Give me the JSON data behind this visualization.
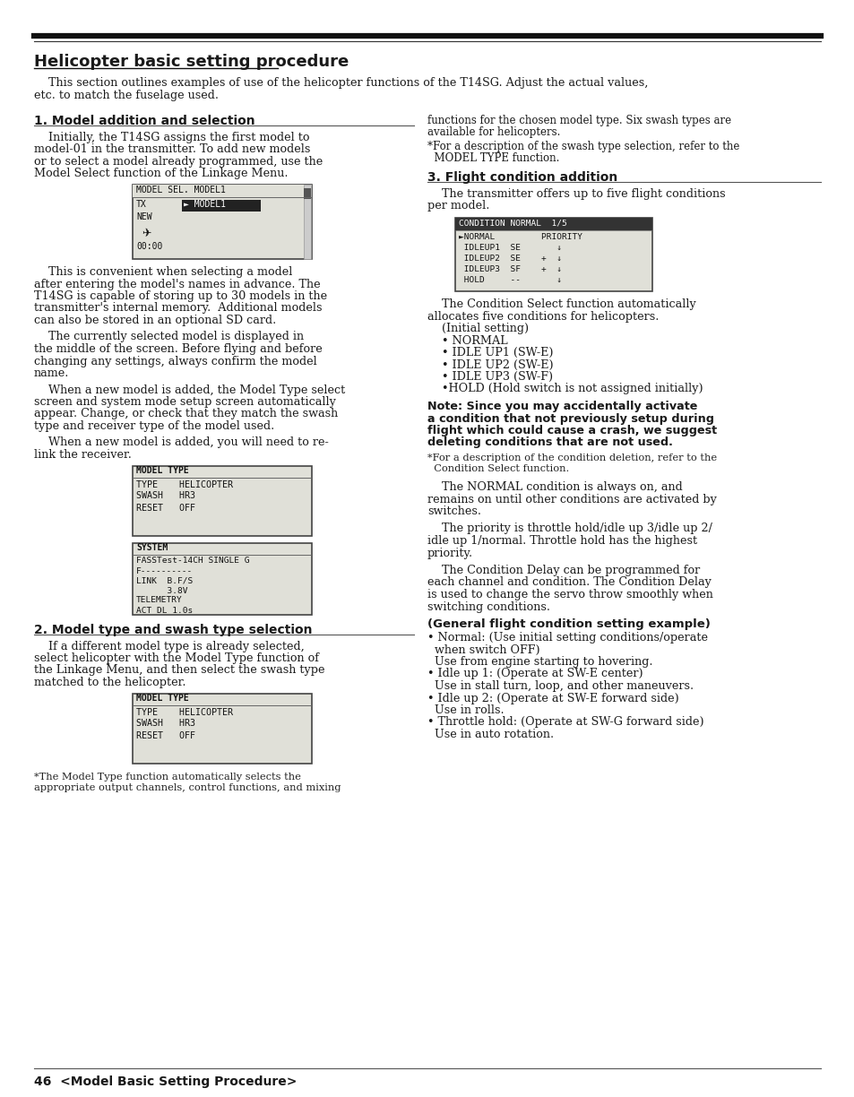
{
  "bg_color": "#ffffff",
  "text_color": "#1a1a1a",
  "title": "Helicopter basic setting procedure",
  "intro_line1": "    This section outlines examples of use of the helicopter functions of the T14SG. Adjust the actual values,",
  "intro_line2": "etc. to match the fuselage used.",
  "s1_head": "1. Model addition and selection",
  "s1_p1_lines": [
    "    Initially, the T14SG assigns the first model to",
    "model-01 in the transmitter. To add new models",
    "or to select a model already programmed, use the",
    "Model Select function of the Linkage Menu."
  ],
  "s1_p2_lines": [
    "    This is convenient when selecting a model",
    "after entering the model's names in advance. The",
    "T14SG is capable of storing up to 30 models in the",
    "transmitter's internal memory.  Additional models",
    "can also be stored in an optional SD card."
  ],
  "s1_p3_lines": [
    "    The currently selected model is displayed in",
    "the middle of the screen. Before flying and before",
    "changing any settings, always confirm the model",
    "name."
  ],
  "s1_p4_lines": [
    "    When a new model is added, the Model Type select",
    "screen and system mode setup screen automatically",
    "appear. Change, or check that they match the swash",
    "type and receiver type of the model used."
  ],
  "s1_p5_lines": [
    "    When a new model is added, you will need to re-",
    "link the receiver."
  ],
  "s2_head": "2. Model type and swash type selection",
  "s2_p1_lines": [
    "    If a different model type is already selected,",
    "select helicopter with the Model Type function of",
    "the Linkage Menu, and then select the swash type",
    "matched to the helicopter."
  ],
  "s2_note_lines": [
    "*The Model Type function automatically selects the",
    "appropriate output channels, control functions, and mixing"
  ],
  "r_top1_lines": [
    "functions for the chosen model type. Six swash types are",
    "available for helicopters."
  ],
  "r_top2_lines": [
    "*For a description of the swash type selection, refer to the",
    "  MODEL TYPE function."
  ],
  "s3_head": "3. Flight condition addition",
  "s3_intro_lines": [
    "    The transmitter offers up to five flight conditions",
    "per model."
  ],
  "s3_p1_lines": [
    "    The Condition Select function automatically",
    "allocates five conditions for helicopters.",
    "    (Initial setting)",
    "    • NORMAL",
    "    • IDLE UP1 (SW-E)",
    "    • IDLE UP2 (SW-E)",
    "    • IDLE UP3 (SW-F)",
    "    •HOLD (Hold switch is not assigned initially)"
  ],
  "s3_note_bold": [
    "Note: Since you may accidentally activate",
    "a condition that not previously setup during",
    "flight which could cause a crash, we suggest",
    "deleting conditions that are not used."
  ],
  "s3_note2_lines": [
    "*For a description of the condition deletion, refer to the",
    "  Condition Select function."
  ],
  "s3_p2_lines": [
    "    The NORMAL condition is always on, and",
    "remains on until other conditions are activated by",
    "switches."
  ],
  "s3_p3_lines": [
    "    The priority is throttle hold/idle up 3/idle up 2/",
    "idle up 1/normal. Throttle hold has the highest",
    "priority."
  ],
  "s3_p4_lines": [
    "    The Condition Delay can be programmed for",
    "each channel and condition. The Condition Delay",
    "is used to change the servo throw smoothly when",
    "switching conditions."
  ],
  "s3_gen_title": "(General flight condition setting example)",
  "s3_gen_lines": [
    "• Normal: (Use initial setting conditions/operate",
    "  when switch OFF)",
    "  Use from engine starting to hovering.",
    "• Idle up 1: (Operate at SW-E center)",
    "  Use in stall turn, loop, and other maneuvers.",
    "• Idle up 2: (Operate at SW-E forward side)",
    "  Use in rolls.",
    "• Throttle hold: (Operate at SW-G forward side)",
    "  Use in auto rotation."
  ],
  "footer": "46  <Model Basic Setting Procedure>"
}
